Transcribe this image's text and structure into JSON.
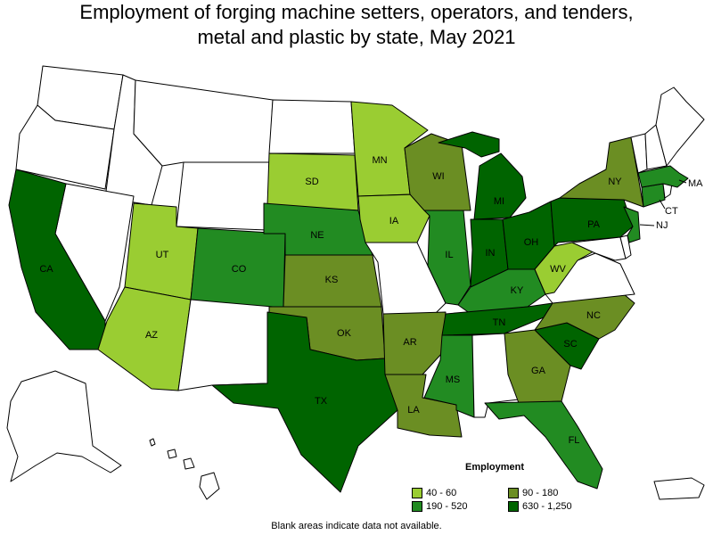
{
  "title_line1": "Employment of forging machine setters, operators, and tenders,",
  "title_line2": "metal and plastic by state, May 2021",
  "legend": {
    "title": "Employment",
    "bins": [
      {
        "label": "40 - 60",
        "color": "#9acd32"
      },
      {
        "label": "90 - 180",
        "color": "#6b8e23"
      },
      {
        "label": "190 - 520",
        "color": "#228b22"
      },
      {
        "label": "630 - 1,250",
        "color": "#006400"
      }
    ]
  },
  "colors": {
    "none": "#ffffff",
    "b1": "#9acd32",
    "b2": "#6b8e23",
    "b3": "#228b22",
    "b4": "#006400"
  },
  "states": {
    "WA": {
      "bin": "none"
    },
    "OR": {
      "bin": "none"
    },
    "ID": {
      "bin": "none"
    },
    "MT": {
      "bin": "none"
    },
    "WY": {
      "bin": "none"
    },
    "NV": {
      "bin": "none"
    },
    "NM": {
      "bin": "none"
    },
    "ND": {
      "bin": "none"
    },
    "MO": {
      "bin": "none"
    },
    "AL": {
      "bin": "none"
    },
    "ME": {
      "bin": "none"
    },
    "VT": {
      "bin": "none"
    },
    "NH": {
      "bin": "none"
    },
    "RI": {
      "bin": "none"
    },
    "DE": {
      "bin": "none"
    },
    "MD": {
      "bin": "none"
    },
    "VA": {
      "bin": "none"
    },
    "AK": {
      "bin": "none"
    },
    "HI": {
      "bin": "none"
    },
    "PR": {
      "bin": "none"
    },
    "CA": {
      "label": "CA",
      "bin": "b4"
    },
    "UT": {
      "label": "UT",
      "bin": "b1"
    },
    "AZ": {
      "label": "AZ",
      "bin": "b1"
    },
    "CO": {
      "label": "CO",
      "bin": "b3"
    },
    "SD": {
      "label": "SD",
      "bin": "b1"
    },
    "NE": {
      "label": "NE",
      "bin": "b3"
    },
    "KS": {
      "label": "KS",
      "bin": "b2"
    },
    "OK": {
      "label": "OK",
      "bin": "b2"
    },
    "TX": {
      "label": "TX",
      "bin": "b4"
    },
    "MN": {
      "label": "MN",
      "bin": "b1"
    },
    "IA": {
      "label": "IA",
      "bin": "b1"
    },
    "AR": {
      "label": "AR",
      "bin": "b2"
    },
    "LA": {
      "label": "LA",
      "bin": "b2"
    },
    "WI": {
      "label": "WI",
      "bin": "b2"
    },
    "IL": {
      "label": "IL",
      "bin": "b3"
    },
    "MS": {
      "label": "MS",
      "bin": "b3"
    },
    "MI": {
      "label": "MI",
      "bin": "b4"
    },
    "IN": {
      "label": "IN",
      "bin": "b4"
    },
    "OH": {
      "label": "OH",
      "bin": "b4"
    },
    "KY": {
      "label": "KY",
      "bin": "b3"
    },
    "TN": {
      "label": "TN",
      "bin": "b4"
    },
    "GA": {
      "label": "GA",
      "bin": "b2"
    },
    "FL": {
      "label": "FL",
      "bin": "b3"
    },
    "SC": {
      "label": "SC",
      "bin": "b4"
    },
    "NC": {
      "label": "NC",
      "bin": "b2"
    },
    "WV": {
      "label": "WV",
      "bin": "b1"
    },
    "PA": {
      "label": "PA",
      "bin": "b4"
    },
    "NY": {
      "label": "NY",
      "bin": "b2"
    },
    "NJ": {
      "label": "NJ",
      "bin": "b3"
    },
    "CT": {
      "label": "CT",
      "bin": "b3"
    },
    "MA": {
      "label": "MA",
      "bin": "b3"
    }
  },
  "footnote": "Blank areas indicate data not available."
}
